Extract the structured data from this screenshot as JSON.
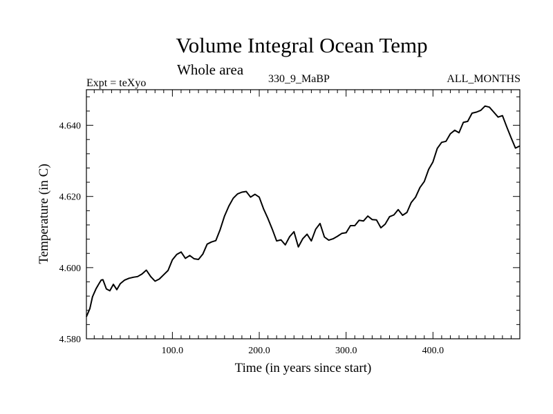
{
  "chart_data": {
    "type": "line",
    "title": "Volume Integral Ocean Temp",
    "subtitle": "Whole area",
    "left_label": "Expt = teXyo",
    "center_label": "330_9_MaBP",
    "right_label": "ALL_MONTHS",
    "xlabel": "Time (in years since start)",
    "ylabel": "Temperature (in C)",
    "xlim": [
      1,
      500
    ],
    "ylim": [
      4.58,
      4.65
    ],
    "x_ticks": [
      100,
      200,
      300,
      400
    ],
    "x_tick_labels": [
      "100.0",
      "200.0",
      "300.0",
      "400.0"
    ],
    "y_ticks": [
      4.58,
      4.6,
      4.62,
      4.64
    ],
    "y_tick_labels": [
      "4.580",
      "4.600",
      "4.620",
      "4.640"
    ],
    "line_color": "#000000",
    "series": [
      {
        "x": [
          1,
          5,
          8,
          12,
          15,
          18,
          20,
          24,
          28,
          32,
          36,
          40,
          45,
          50,
          55,
          60,
          65,
          70,
          75,
          80,
          85,
          90,
          95,
          100,
          105,
          110,
          115,
          120,
          125,
          130,
          135,
          140,
          145,
          150,
          155,
          160,
          165,
          170,
          175,
          180,
          185,
          190,
          195,
          200,
          205,
          210,
          215,
          220,
          225,
          230,
          235,
          240,
          245,
          250,
          255,
          260,
          265,
          270,
          275,
          280,
          285,
          290,
          295,
          300,
          305,
          310,
          315,
          320,
          325,
          330,
          335,
          340,
          345,
          350,
          355,
          360,
          365,
          370,
          375,
          380,
          385,
          390,
          395,
          400,
          405,
          410,
          415,
          420,
          425,
          430,
          435,
          440,
          445,
          450,
          455,
          460,
          465,
          470,
          475,
          480,
          485,
          490,
          495,
          500
        ],
        "y": [
          4.5862,
          4.5885,
          4.5918,
          4.594,
          4.5953,
          4.5965,
          4.5966,
          4.594,
          4.5935,
          4.5953,
          4.5938,
          4.5955,
          4.5965,
          4.597,
          4.5973,
          4.5975,
          4.5982,
          4.5993,
          4.5975,
          4.5962,
          4.5968,
          4.598,
          4.5992,
          4.6022,
          4.6037,
          4.6044,
          4.6026,
          4.6034,
          4.6025,
          4.6023,
          4.6038,
          4.6066,
          4.6072,
          4.6076,
          4.6107,
          4.6145,
          4.6173,
          4.6195,
          4.6207,
          4.6212,
          4.6214,
          4.6198,
          4.6206,
          4.6198,
          4.6165,
          4.6138,
          4.6108,
          4.6075,
          4.6078,
          4.6064,
          4.6087,
          4.6101,
          4.6058,
          4.6081,
          4.6094,
          4.6075,
          4.6108,
          4.6124,
          4.6086,
          4.6077,
          4.6081,
          4.6088,
          4.6096,
          4.6098,
          4.6118,
          4.6118,
          4.6133,
          4.6131,
          4.6145,
          4.6135,
          4.6134,
          4.6112,
          4.6122,
          4.6143,
          4.6148,
          4.6163,
          4.6147,
          4.6155,
          4.6183,
          4.6198,
          4.6225,
          4.6242,
          4.6276,
          4.6297,
          4.6335,
          4.6352,
          4.6355,
          4.6376,
          4.6386,
          4.6379,
          4.6408,
          4.6411,
          4.6434,
          4.6437,
          4.6442,
          4.6454,
          4.6451,
          4.6437,
          4.6423,
          4.6427,
          4.6395,
          4.6365,
          4.6336,
          4.6342
        ]
      }
    ]
  }
}
